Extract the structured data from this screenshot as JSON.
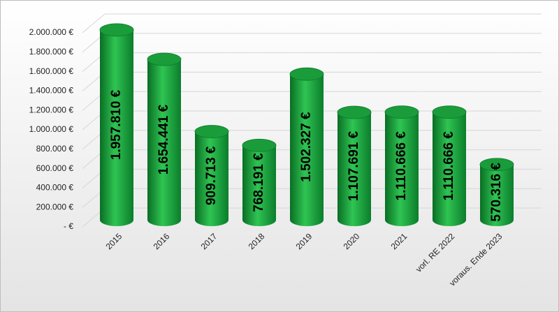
{
  "chart_data": {
    "type": "bar",
    "style": "cylinder",
    "categories": [
      "2015",
      "2016",
      "2017",
      "2018",
      "2019",
      "2020",
      "2021",
      "vorl. RE 2022",
      "voraus. Ende 2023"
    ],
    "values": [
      1957810,
      1654441,
      909713,
      768191,
      1502327,
      1107691,
      1110666,
      1110666,
      570316
    ],
    "value_labels": [
      "1.957.810 €",
      "1.654.441 €",
      "909.713 €",
      "768.191 €",
      "1.502.327 €",
      "1.107.691 €",
      "1.110.666 €",
      "1.110.666 €",
      "570.316 €"
    ],
    "color": "#1a9c3a",
    "ylim": [
      0,
      2000000
    ],
    "yticks": [
      {
        "value": 0,
        "label": "-  €"
      },
      {
        "value": 200000,
        "label": "200.000 €"
      },
      {
        "value": 400000,
        "label": "400.000 €"
      },
      {
        "value": 600000,
        "label": "600.000 €"
      },
      {
        "value": 800000,
        "label": "800.000 €"
      },
      {
        "value": 1000000,
        "label": "1.000.000 €"
      },
      {
        "value": 1200000,
        "label": "1.200.000 €"
      },
      {
        "value": 1400000,
        "label": "1.400.000 €"
      },
      {
        "value": 1600000,
        "label": "1.600.000 €"
      },
      {
        "value": 1800000,
        "label": "1.800.000 €"
      },
      {
        "value": 2000000,
        "label": "2.000.000 €"
      }
    ],
    "grid": true
  }
}
